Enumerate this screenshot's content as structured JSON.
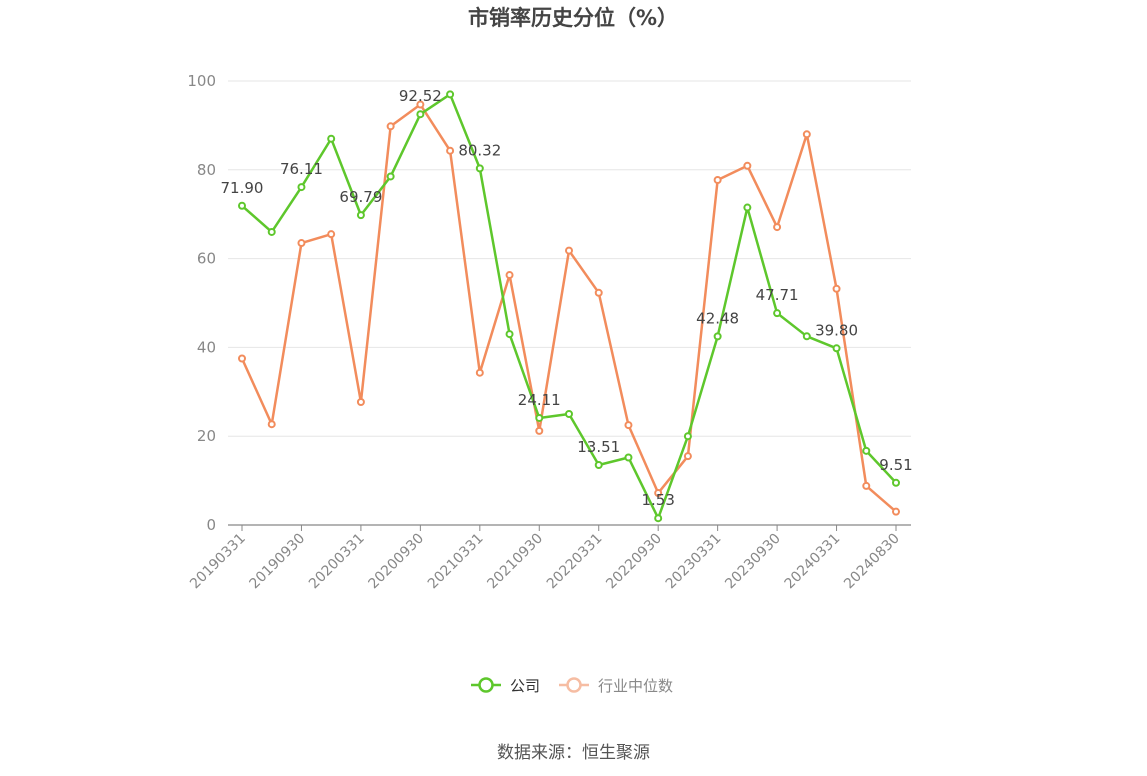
{
  "chart_data": {
    "type": "line",
    "title": "市销率历史分位（%）",
    "xlabel": "",
    "ylabel": "",
    "ylim": [
      0,
      100
    ],
    "yticks": [
      0,
      20,
      40,
      60,
      80,
      100
    ],
    "grid": true,
    "legend_position": "bottom",
    "x": [
      "20190331",
      "20190630",
      "20190930",
      "20191231",
      "20200331",
      "20200630",
      "20200930",
      "20201231",
      "20210331",
      "20210630",
      "20210930",
      "20211231",
      "20220331",
      "20220630",
      "20220930",
      "20221231",
      "20230331",
      "20230630",
      "20230930",
      "20231231",
      "20240331",
      "20240630",
      "20240830"
    ],
    "xtick_labels": [
      "20190331",
      "20190930",
      "20200331",
      "20200930",
      "20210331",
      "20210930",
      "20220331",
      "20220930",
      "20230331",
      "20230930",
      "20240331",
      "20240830"
    ],
    "series": [
      {
        "name": "公司",
        "color": "#5ec72c",
        "values": [
          71.9,
          66.0,
          76.11,
          87.0,
          69.79,
          78.5,
          92.52,
          97.0,
          80.32,
          43.0,
          24.11,
          25.0,
          13.51,
          15.2,
          1.53,
          20.0,
          42.48,
          71.5,
          47.71,
          42.5,
          39.8,
          16.7,
          9.51
        ],
        "data_labels": {
          "0": "71.90",
          "2": "76.11",
          "4": "69.79",
          "6": "92.52",
          "8": "80.32",
          "10": "24.11",
          "12": "13.51",
          "14": "1.53",
          "16": "42.48",
          "18": "47.71",
          "20": "39.80",
          "22": "9.51"
        }
      },
      {
        "name": "行业中位数",
        "color": "#f28c5c",
        "values": [
          37.5,
          22.7,
          63.5,
          65.5,
          27.7,
          89.8,
          94.7,
          84.3,
          34.3,
          56.3,
          21.2,
          61.8,
          52.3,
          22.5,
          7.2,
          15.5,
          77.7,
          80.9,
          67.1,
          88.0,
          53.2,
          8.8,
          3.0
        ]
      }
    ]
  },
  "source_text": "数据来源：恒生聚源"
}
